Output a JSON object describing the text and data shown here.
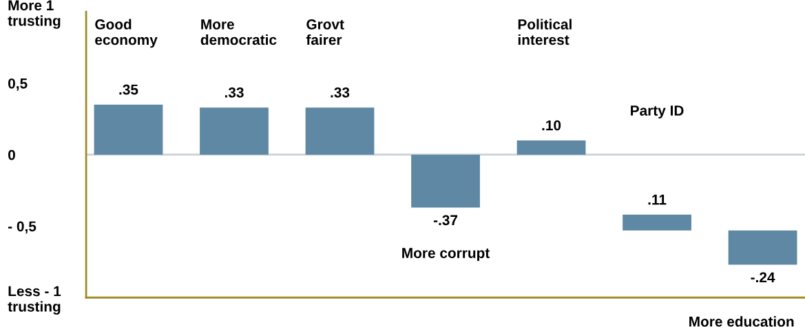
{
  "chart_data": {
    "type": "bar",
    "categories": [
      "Good economy",
      "More democratic",
      "Grovt fairer",
      "More corrupt",
      "Political interest",
      "Party ID",
      "More education"
    ],
    "values": [
      0.35,
      0.33,
      0.33,
      -0.37,
      0.1,
      0.11,
      -0.24
    ],
    "base": [
      null,
      null,
      null,
      null,
      null,
      -0.53,
      -0.53
    ],
    "value_labels": [
      ".35",
      ".33",
      ".33",
      "-.37",
      ".10",
      ".11",
      "-.24"
    ],
    "color": "#5e88a4",
    "ylim": [
      -1,
      1
    ],
    "yticks": [
      {
        "value": 1,
        "label": "More 1\ntrusting"
      },
      {
        "value": 0.5,
        "label": "0,5"
      },
      0,
      {
        "value": -0.5,
        "label": "- 0,5"
      },
      {
        "value": -1,
        "label": "Less - 1\ntrusting"
      }
    ],
    "ref_lines": [
      {
        "axis": "y",
        "value": 0,
        "label": null,
        "color": "#c9d2da"
      }
    ],
    "tick_labels": "y",
    "grid": false
  }
}
